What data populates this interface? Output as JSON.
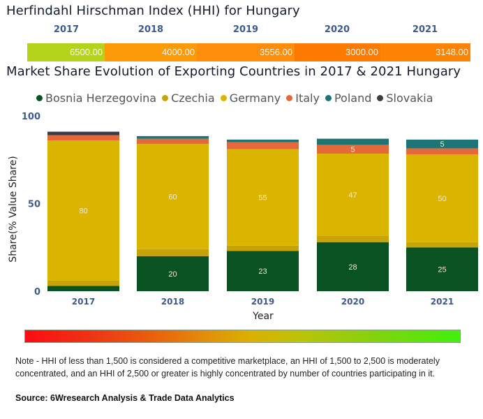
{
  "hhi": {
    "title": "Herfindahl Hirschman Index (HHI) for Hungary",
    "years": [
      "2017",
      "2018",
      "2019",
      "2020",
      "2021"
    ],
    "values": [
      "6500.00",
      "4000.00",
      "3556.00",
      "3000.00",
      "3148.00"
    ],
    "colors": [
      "#b3d41a",
      "#fd9a08",
      "#fd8d0a",
      "#fd7a00",
      "#fd8304"
    ]
  },
  "chart_data": {
    "type": "bar",
    "stacked": true,
    "title": "Market Share Evolution of Exporting Countries in 2017 & 2021 Hungary",
    "xlabel": "Year",
    "ylabel": "Share(% Value Share)",
    "ylim": [
      0,
      100
    ],
    "yticks": [
      "0",
      "50",
      "100"
    ],
    "categories": [
      "2017",
      "2018",
      "2019",
      "2020",
      "2021"
    ],
    "legend_position": "top-center",
    "series": [
      {
        "name": "Bosnia Herzegovina",
        "color": "#0b5223",
        "values": [
          3,
          20,
          23,
          28,
          25
        ],
        "labels": [
          "",
          "20",
          "23",
          "28",
          "25"
        ]
      },
      {
        "name": "Czechia",
        "color": "#c6a306",
        "values": [
          3,
          4,
          3,
          3.5,
          3
        ],
        "labels": [
          "",
          "",
          "",
          "",
          ""
        ]
      },
      {
        "name": "Germany",
        "color": "#dbb400",
        "values": [
          80,
          60,
          55,
          47,
          50
        ],
        "labels": [
          "80",
          "60",
          "55",
          "47",
          "50"
        ]
      },
      {
        "name": "Italy",
        "color": "#e5683a",
        "values": [
          3,
          3,
          4,
          5,
          3.5
        ],
        "labels": [
          "",
          "",
          "",
          "5",
          ""
        ]
      },
      {
        "name": "Poland",
        "color": "#1c7475",
        "values": [
          0,
          1.5,
          1.5,
          3.5,
          5
        ],
        "labels": [
          "",
          "",
          "",
          "",
          "5"
        ]
      },
      {
        "name": "Slovakia",
        "color": "#3b3d45",
        "values": [
          2,
          0,
          0,
          0,
          0
        ],
        "labels": [
          "",
          "",
          "",
          "",
          ""
        ]
      }
    ]
  },
  "color_scale": {
    "from": "#ff0a14",
    "mid": "#dcb000",
    "to": "#40f00e"
  },
  "note": "Note - HHI of less than 1,500 is considered a competitive marketplace, an HHI of 1,500 to 2,500 is moderately concentrated, and an HHI of 2,500 or greater is highly concentrated by number of countries participating in it.",
  "source": "Source: 6Wresearch Analysis & Trade Data Analytics"
}
